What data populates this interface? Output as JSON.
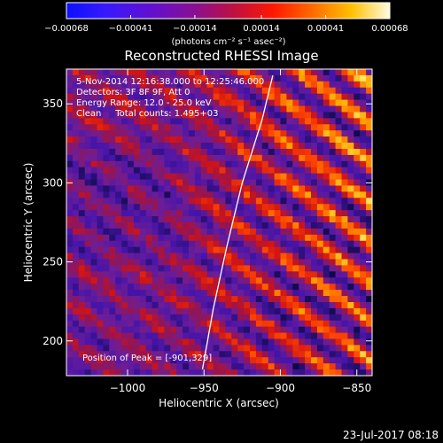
{
  "chart_data": {
    "type": "heatmap",
    "title": "Reconstructed RHESSI Image",
    "xlabel": "Heliocentric X (arcsec)",
    "ylabel": "Heliocentric Y (arcsec)",
    "xlim": [
      -1040,
      -840
    ],
    "ylim": [
      178,
      372
    ],
    "x_ticks": [
      -1000,
      -950,
      -900,
      -850
    ],
    "x_tick_labels": [
      "−1000",
      "−950",
      "−900",
      "−850"
    ],
    "y_ticks": [
      200,
      250,
      300,
      350
    ],
    "y_tick_labels": [
      "200",
      "250",
      "300",
      "350"
    ],
    "colorbar": {
      "min": -0.00068,
      "max": 0.00068,
      "ticks": [
        -0.00068,
        -0.00041,
        -0.00014,
        0.00014,
        0.00041,
        0.00068
      ],
      "tick_labels": [
        "−0.00068",
        "−0.00041",
        "−0.00014",
        "0.00014",
        "0.00041",
        "0.00068"
      ],
      "unit_label": "(photons cm⁻² s⁻¹ asec⁻²)"
    },
    "annotations": [
      "5-Nov-2014 12:16:38.000 to 12:25:46.000",
      "Detectors: 3F 8F 9F, Att 0",
      "Energy Range: 12.0 - 25.0 keV",
      "Clean     Total counts: 1.495+03"
    ],
    "peak_label": "Position of Peak = [-901,329]",
    "limb_curve": [
      [
        -951,
        182
      ],
      [
        -944,
        220
      ],
      [
        -935,
        260
      ],
      [
        -925,
        300
      ],
      [
        -912,
        340
      ],
      [
        -905,
        368
      ]
    ],
    "timestamp": "23-Jul-2017 08:18",
    "grid": false,
    "legend": "colorbar-top"
  }
}
